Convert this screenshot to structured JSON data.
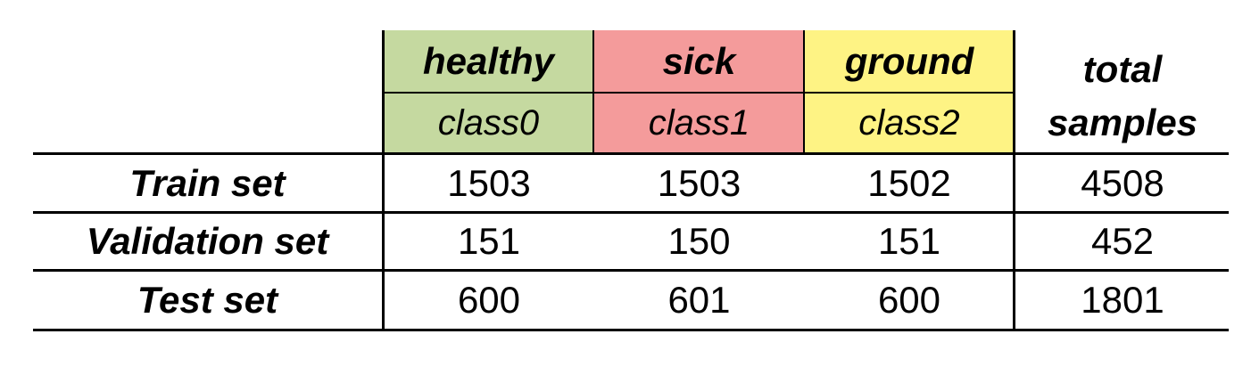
{
  "header": {
    "classes": [
      {
        "name": "healthy",
        "label": "class0",
        "color": "#c5d9a0"
      },
      {
        "name": "sick",
        "label": "class1",
        "color": "#f49b9b"
      },
      {
        "name": "ground",
        "label": "class2",
        "color": "#fef384"
      }
    ],
    "total_line1": "total",
    "total_line2": "samples"
  },
  "rows": [
    {
      "label": "Train set",
      "values": [
        "1503",
        "1503",
        "1502"
      ],
      "total": "4508"
    },
    {
      "label": "Validation set",
      "values": [
        "151",
        "150",
        "151"
      ],
      "total": "452"
    },
    {
      "label": "Test set",
      "values": [
        "600",
        "601",
        "600"
      ],
      "total": "1801"
    }
  ]
}
